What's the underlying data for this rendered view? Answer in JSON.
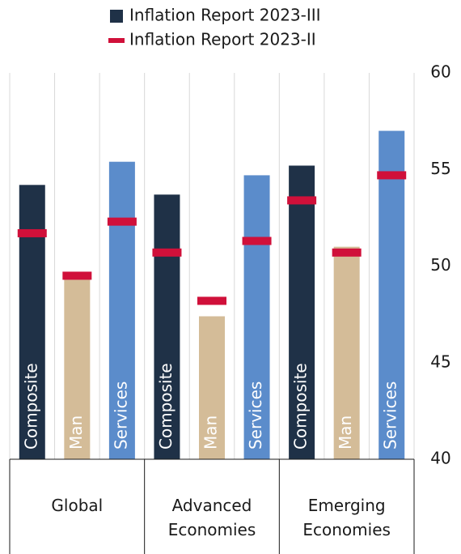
{
  "chart_data": {
    "type": "bar",
    "categories": [
      "Composite",
      "Man",
      "Services",
      "Composite",
      "Man",
      "Services",
      "Composite",
      "Man",
      "Services"
    ],
    "groups": [
      "Global",
      "Advanced Economies",
      "Emerging Economies"
    ],
    "series": [
      {
        "name": "Inflation Report 2023-III",
        "color": "#1f3147",
        "colors": [
          "#1f3147",
          "#d4bc98",
          "#5b8ccb",
          "#1f3147",
          "#d4bc98",
          "#5b8ccb",
          "#1f3147",
          "#d4bc98",
          "#5b8ccb"
        ],
        "values": [
          54.2,
          49.3,
          55.4,
          53.7,
          47.4,
          54.7,
          55.2,
          51.0,
          57.0
        ]
      },
      {
        "name": "Inflation Report 2023-II",
        "color": "#d0103a",
        "values": [
          51.7,
          49.5,
          52.3,
          50.7,
          48.2,
          51.3,
          53.4,
          50.7,
          54.7
        ]
      }
    ],
    "ylim": [
      40,
      60
    ],
    "yticks": [
      40,
      45,
      50,
      55,
      60
    ]
  }
}
